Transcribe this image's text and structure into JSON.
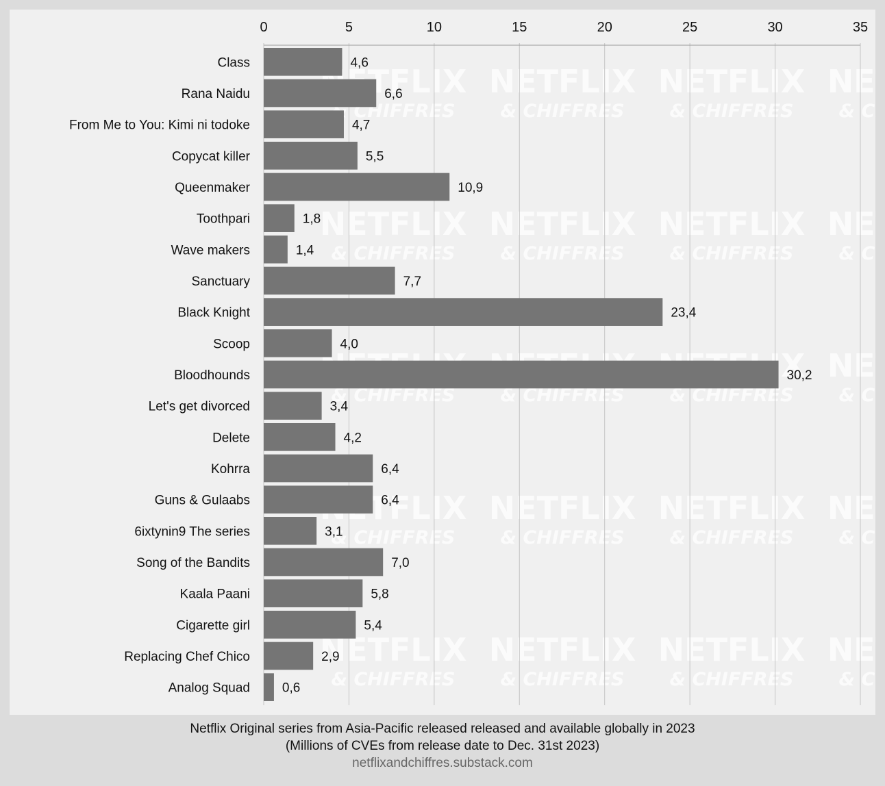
{
  "chart_data": {
    "type": "bar",
    "orientation": "horizontal",
    "categories": [
      "Class",
      "Rana Naidu",
      "From Me to You: Kimi ni todoke",
      "Copycat killer",
      "Queenmaker",
      "Toothpari",
      "Wave makers",
      "Sanctuary",
      "Black Knight",
      "Scoop",
      "Bloodhounds",
      "Let's get divorced",
      "Delete",
      "Kohrra",
      "Guns & Gulaabs",
      "6ixtynin9 The series",
      "Song of the Bandits",
      "Kaala Paani",
      "Cigarette girl",
      "Replacing Chef Chico",
      "Analog Squad"
    ],
    "values": [
      4.6,
      6.6,
      4.7,
      5.5,
      10.9,
      1.8,
      1.4,
      7.7,
      23.4,
      4.0,
      30.2,
      3.4,
      4.2,
      6.4,
      6.4,
      3.1,
      7.0,
      5.8,
      5.4,
      2.9,
      0.6
    ],
    "value_labels": [
      "4,6",
      "6,6",
      "4,7",
      "5,5",
      "10,9",
      "1,8",
      "1,4",
      "7,7",
      "23,4",
      "4,0",
      "30,2",
      "3,4",
      "4,2",
      "6,4",
      "6,4",
      "3,1",
      "7,0",
      "5,8",
      "5,4",
      "2,9",
      "0,6"
    ],
    "xlim": [
      0,
      35
    ],
    "xticks": [
      0,
      5,
      10,
      15,
      20,
      25,
      30,
      35
    ],
    "xaxis_position": "top",
    "grid": true,
    "bar_color": "#757575",
    "watermark": {
      "line1": "NETFLIX",
      "line2": "& CHIFFRES"
    },
    "caption_line1": "Netflix Original series from Asia-Pacific released released and available globally in 2023",
    "caption_line2": "(Millions of CVEs from release date to Dec. 31st 2023)",
    "source": "netflixandchiffres.substack.com"
  }
}
